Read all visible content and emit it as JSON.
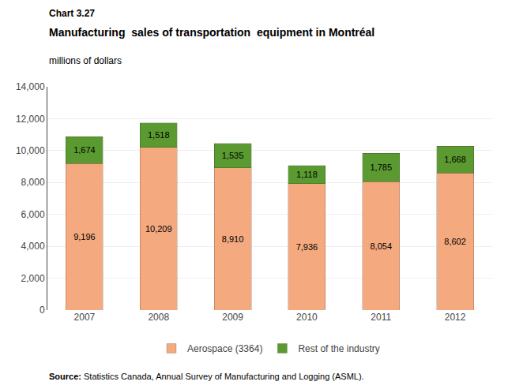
{
  "chart_data": {
    "type": "bar",
    "title": [
      "Chart 3.27",
      "Manufacturing  sales of transportation  equipment in Montréal"
    ],
    "subtitle": "millions of dollars",
    "annotations": [
      "Source: Statistics Canada, Annual Survey of Manufacturing and Logging (ASML)."
    ],
    "categories": [
      "2007",
      "2008",
      "2009",
      "2010",
      "2011",
      "2012"
    ],
    "series": [
      {
        "name": "Aerospace (3364)",
        "color": "#F4A97F",
        "values": [
          9196,
          10209,
          8910,
          7936,
          8054,
          8602
        ],
        "value_labels": [
          "9,196",
          "10,209",
          "8,910",
          "7,936",
          "8,054",
          "8,602"
        ]
      },
      {
        "name": "Rest of the industry",
        "color": "#5B9A30",
        "values": [
          1674,
          1518,
          1535,
          1118,
          1785,
          1668
        ],
        "value_labels": [
          "1,674",
          "1,518",
          "1,535",
          "1,118",
          "1,785",
          "1,668"
        ]
      }
    ],
    "stacked": true,
    "data_labels": true,
    "ylim": [
      0,
      14000
    ],
    "yticks": [
      0,
      {
        "value": 2000,
        "label": "2,000"
      },
      {
        "value": 4000,
        "label": "4,000"
      },
      {
        "value": 6000,
        "label": "6,000"
      },
      {
        "value": 8000,
        "label": "8,000"
      },
      {
        "value": 10000,
        "label": "10,000"
      },
      {
        "value": 12000,
        "label": "12,000"
      },
      {
        "value": 14000,
        "label": "14,000"
      }
    ],
    "grid": true,
    "legend": "bottom"
  }
}
